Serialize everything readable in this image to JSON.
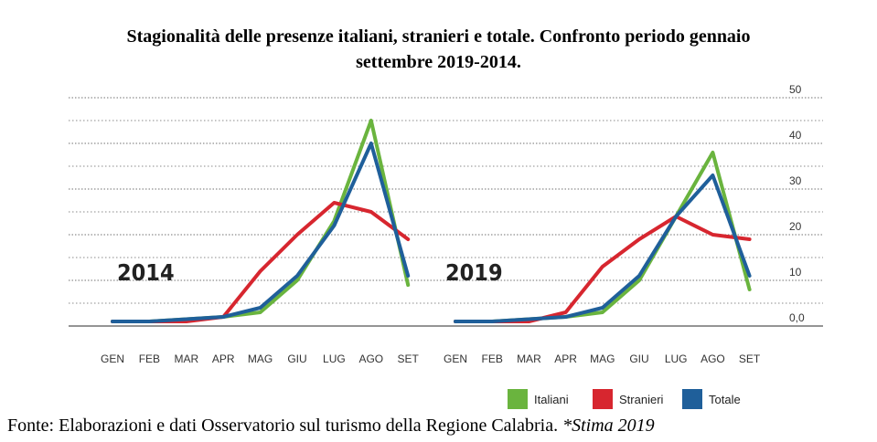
{
  "title": {
    "line1": "Stagionalità delle presenze italiani, stranieri e totale. Confronto periodo gennaio",
    "line2": "settembre 2019-2014."
  },
  "footer": {
    "source": "Fonte: Elaborazioni e dati Osservatorio sul turismo della Regione Calabria. ",
    "note": "*Stima 2019"
  },
  "chart_data": {
    "type": "line",
    "ylim": [
      0,
      50
    ],
    "yticks": [
      "0,0",
      "10",
      "20",
      "30",
      "40",
      "50"
    ],
    "grid": true,
    "legend_position": "bottom-right",
    "colors": {
      "Italiani": "#6ab43e",
      "Stranieri": "#d7262f",
      "Totale": "#1f5f9a"
    },
    "panels": [
      {
        "year_label": "2014",
        "categories": [
          "GEN",
          "FEB",
          "MAR",
          "APR",
          "MAG",
          "GIU",
          "LUG",
          "AGO",
          "SET"
        ],
        "series": [
          {
            "name": "Italiani",
            "values": [
              1,
              1,
              1.5,
              2,
              3,
              10,
              23,
              45,
              9
            ]
          },
          {
            "name": "Stranieri",
            "values": [
              1,
              1,
              1,
              2,
              12,
              20,
              27,
              25,
              19
            ]
          },
          {
            "name": "Totale",
            "values": [
              1,
              1,
              1.5,
              2,
              4,
              11,
              22,
              40,
              11
            ]
          }
        ]
      },
      {
        "year_label": "2019",
        "categories": [
          "GEN",
          "FEB",
          "MAR",
          "APR",
          "MAG",
          "GIU",
          "LUG",
          "AGO",
          "SET"
        ],
        "series": [
          {
            "name": "Italiani",
            "values": [
              1,
              1,
              1.5,
              2,
              3,
              10,
              24,
              38,
              8
            ]
          },
          {
            "name": "Stranieri",
            "values": [
              1,
              1,
              1,
              3,
              13,
              19,
              24,
              20,
              19
            ]
          },
          {
            "name": "Totale",
            "values": [
              1,
              1,
              1.5,
              2,
              4,
              11,
              24,
              33,
              11
            ]
          }
        ]
      }
    ],
    "legend": [
      "Italiani",
      "Stranieri",
      "Totale"
    ]
  }
}
